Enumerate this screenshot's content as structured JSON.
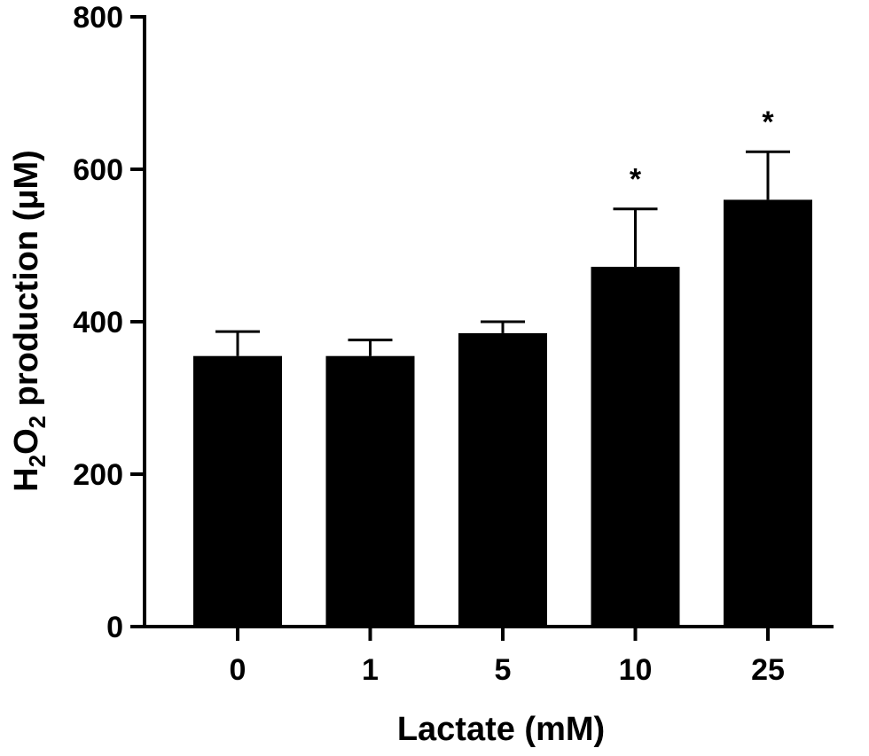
{
  "chart_data": {
    "type": "bar",
    "categories": [
      "0",
      "1",
      "5",
      "10",
      "25"
    ],
    "values": [
      355,
      355,
      385,
      472,
      560
    ],
    "error_upper": [
      387,
      376,
      400,
      548,
      623
    ],
    "significance": [
      "",
      "",
      "",
      "*",
      "*"
    ],
    "xlabel": "Lactate (mM)",
    "ylabel": {
      "prefix": "H",
      "sub1": "2",
      "mid": "O",
      "sub2": "2",
      "suffix": " production (μM)"
    },
    "ylim": [
      0,
      800
    ],
    "yticks": [
      0,
      200,
      400,
      600,
      800
    ],
    "grid": false,
    "legend": "none",
    "bar_color": "#000000"
  }
}
